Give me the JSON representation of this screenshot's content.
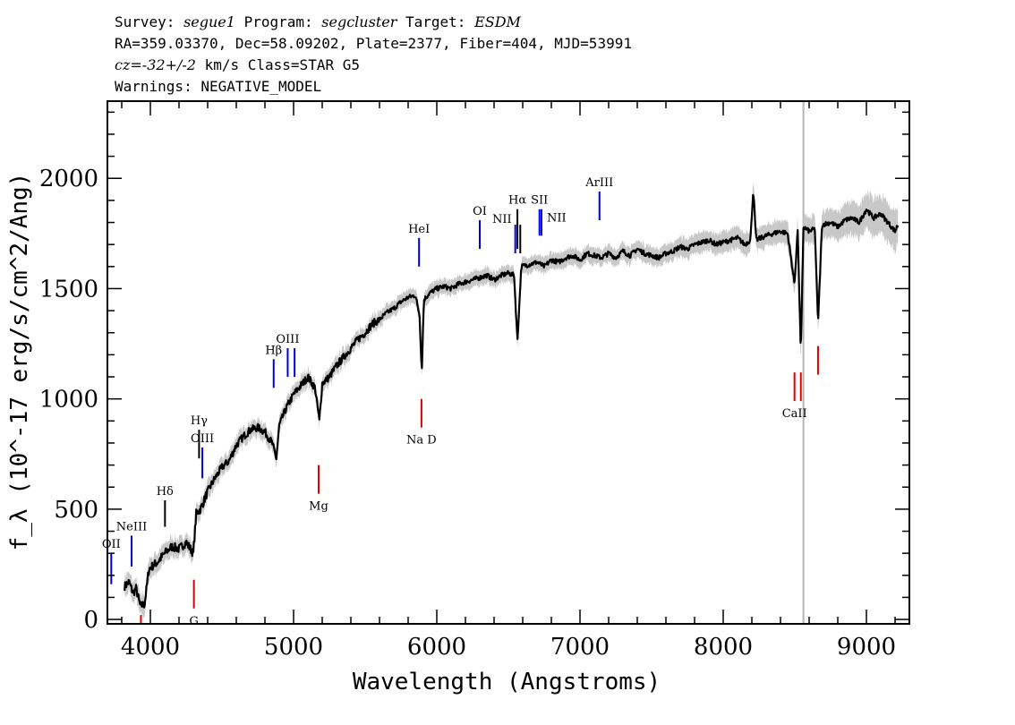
{
  "header": {
    "survey_label": "Survey:",
    "survey_value": "segue1",
    "program_label": "Program:",
    "program_value": "segcluster",
    "target_label": "Target:",
    "target_value": "ESDM",
    "line2": "RA=359.03370, Dec=58.09202, Plate=2377, Fiber=404, MJD=53991",
    "cz_label": "cz=",
    "cz_value": "-32+/-2",
    "line3_rest": "km/s Class=STAR G5",
    "line4": "Warnings: NEGATIVE_MODEL"
  },
  "chart_data": {
    "type": "line",
    "title": "Survey: segue1 Program: segcluster Target: ESDM",
    "xlabel": "Wavelength (Angstroms)",
    "ylabel": "f_λ (10^-17 erg/s/cm^2/Ang)",
    "xlim": [
      3700,
      9300
    ],
    "ylim": [
      -20,
      2350
    ],
    "x_ticks": [
      4000,
      5000,
      6000,
      7000,
      8000,
      9000
    ],
    "x_tick_labels": [
      "4000",
      "5000",
      "6000",
      "7000",
      "8000",
      "9000"
    ],
    "y_ticks": [
      0,
      500,
      1000,
      1500,
      2000
    ],
    "y_tick_labels": [
      "0",
      "500",
      "1000",
      "1500",
      "2000"
    ],
    "series": [
      {
        "name": "flux",
        "color": "#000000",
        "points": [
          [
            3820,
            150
          ],
          [
            3850,
            170
          ],
          [
            3880,
            120
          ],
          [
            3900,
            140
          ],
          [
            3930,
            60
          ],
          [
            3960,
            70
          ],
          [
            3990,
            230
          ],
          [
            4050,
            260
          ],
          [
            4100,
            300
          ],
          [
            4150,
            330
          ],
          [
            4200,
            320
          ],
          [
            4250,
            350
          ],
          [
            4300,
            300
          ],
          [
            4320,
            480
          ],
          [
            4350,
            500
          ],
          [
            4400,
            580
          ],
          [
            4450,
            640
          ],
          [
            4500,
            690
          ],
          [
            4550,
            720
          ],
          [
            4600,
            790
          ],
          [
            4650,
            830
          ],
          [
            4700,
            860
          ],
          [
            4750,
            870
          ],
          [
            4800,
            850
          ],
          [
            4850,
            800
          ],
          [
            4880,
            730
          ],
          [
            4900,
            880
          ],
          [
            4950,
            960
          ],
          [
            5000,
            1020
          ],
          [
            5050,
            1060
          ],
          [
            5100,
            1100
          ],
          [
            5150,
            1050
          ],
          [
            5180,
            900
          ],
          [
            5200,
            1070
          ],
          [
            5250,
            1100
          ],
          [
            5300,
            1150
          ],
          [
            5350,
            1190
          ],
          [
            5400,
            1230
          ],
          [
            5450,
            1270
          ],
          [
            5500,
            1300
          ],
          [
            5550,
            1340
          ],
          [
            5600,
            1360
          ],
          [
            5650,
            1390
          ],
          [
            5700,
            1410
          ],
          [
            5750,
            1440
          ],
          [
            5800,
            1460
          ],
          [
            5850,
            1470
          ],
          [
            5880,
            1380
          ],
          [
            5895,
            1120
          ],
          [
            5910,
            1450
          ],
          [
            5950,
            1480
          ],
          [
            6000,
            1500
          ],
          [
            6050,
            1510
          ],
          [
            6100,
            1500
          ],
          [
            6150,
            1520
          ],
          [
            6200,
            1530
          ],
          [
            6250,
            1540
          ],
          [
            6300,
            1550
          ],
          [
            6350,
            1560
          ],
          [
            6400,
            1540
          ],
          [
            6450,
            1560
          ],
          [
            6500,
            1570
          ],
          [
            6540,
            1560
          ],
          [
            6563,
            1260
          ],
          [
            6590,
            1600
          ],
          [
            6650,
            1610
          ],
          [
            6700,
            1620
          ],
          [
            6750,
            1600
          ],
          [
            6800,
            1630
          ],
          [
            6850,
            1620
          ],
          [
            6900,
            1640
          ],
          [
            6950,
            1650
          ],
          [
            7000,
            1630
          ],
          [
            7050,
            1660
          ],
          [
            7100,
            1650
          ],
          [
            7150,
            1640
          ],
          [
            7200,
            1660
          ],
          [
            7250,
            1640
          ],
          [
            7300,
            1670
          ],
          [
            7350,
            1650
          ],
          [
            7400,
            1680
          ],
          [
            7450,
            1660
          ],
          [
            7500,
            1650
          ],
          [
            7550,
            1640
          ],
          [
            7600,
            1660
          ],
          [
            7650,
            1670
          ],
          [
            7700,
            1690
          ],
          [
            7750,
            1680
          ],
          [
            7800,
            1700
          ],
          [
            7850,
            1710
          ],
          [
            7900,
            1720
          ],
          [
            7950,
            1700
          ],
          [
            8000,
            1710
          ],
          [
            8050,
            1720
          ],
          [
            8100,
            1730
          ],
          [
            8150,
            1700
          ],
          [
            8190,
            1720
          ],
          [
            8210,
            1950
          ],
          [
            8230,
            1720
          ],
          [
            8300,
            1740
          ],
          [
            8350,
            1750
          ],
          [
            8400,
            1760
          ],
          [
            8450,
            1750
          ],
          [
            8498,
            1520
          ],
          [
            8520,
            1770
          ],
          [
            8542,
            1200
          ],
          [
            8560,
            1780
          ],
          [
            8600,
            1760
          ],
          [
            8640,
            1770
          ],
          [
            8662,
            1340
          ],
          [
            8690,
            1790
          ],
          [
            8750,
            1800
          ],
          [
            8800,
            1780
          ],
          [
            8850,
            1810
          ],
          [
            8900,
            1820
          ],
          [
            8950,
            1800
          ],
          [
            9000,
            1860
          ],
          [
            9050,
            1820
          ],
          [
            9100,
            1840
          ],
          [
            9150,
            1800
          ],
          [
            9200,
            1760
          ],
          [
            9220,
            1790
          ]
        ]
      },
      {
        "name": "error",
        "color": "#c8c8c8",
        "band_halfwidth": [
          [
            3800,
            45
          ],
          [
            4500,
            40
          ],
          [
            5500,
            35
          ],
          [
            6500,
            35
          ],
          [
            7500,
            40
          ],
          [
            8500,
            55
          ],
          [
            9220,
            90
          ]
        ]
      }
    ],
    "vline": {
      "x": 8560,
      "color": "#b4b4b4"
    },
    "annotations": [
      {
        "label": "OII",
        "x": 3727,
        "y": 270,
        "y_top": 300,
        "y_bottom": 160,
        "color": "#0000dd",
        "label_pos": "above"
      },
      {
        "label": "NeIII",
        "x": 3869,
        "y": 300,
        "y_top": 380,
        "y_bottom": 240,
        "color": "#0000dd",
        "label_pos": "above"
      },
      {
        "label": "Hδ",
        "x": 4102,
        "y": 480,
        "y_top": 540,
        "y_bottom": 420,
        "color": "#000000",
        "label_pos": "above"
      },
      {
        "label": "Hγ",
        "x": 4340,
        "y": 770,
        "y_top": 860,
        "y_bottom": 730,
        "color": "#000000",
        "label_pos": "above"
      },
      {
        "label": "OIII",
        "x": 4363,
        "y": 710,
        "y_top": 780,
        "y_bottom": 640,
        "color": "#0000dd",
        "label_pos": "above"
      },
      {
        "label": "Hβ",
        "x": 4861,
        "y": 1150,
        "y_top": 1180,
        "y_bottom": 1050,
        "color": "#0000dd",
        "label_pos": "above"
      },
      {
        "label": "OIII",
        "x": 4959,
        "y": 1260,
        "y_top": 1230,
        "y_bottom": 1100,
        "color": "#0000dd",
        "label_pos": "above"
      },
      {
        "label": "",
        "x": 5007,
        "y": 1260,
        "y_top": 1230,
        "y_bottom": 1100,
        "color": "#0000dd",
        "label_pos": "none"
      },
      {
        "label": "HeI",
        "x": 5876,
        "y": 1740,
        "y_top": 1730,
        "y_bottom": 1600,
        "color": "#0000dd",
        "label_pos": "above"
      },
      {
        "label": "OI",
        "x": 6300,
        "y": 1870,
        "y_top": 1810,
        "y_bottom": 1680,
        "color": "#0000dd",
        "label_pos": "above"
      },
      {
        "label": "NII",
        "x": 6548,
        "y": 1830,
        "y_top": 1790,
        "y_bottom": 1660,
        "color": "#0000dd",
        "label_pos": "left"
      },
      {
        "label": "Hα",
        "x": 6563,
        "y": 1870,
        "y_top": 1860,
        "y_bottom": 1680,
        "color": "#000000",
        "label_pos": "above"
      },
      {
        "label": "NII",
        "x": 6583,
        "y": 1830,
        "y_top": 1790,
        "y_bottom": 1660,
        "color": "#000000",
        "label_pos": "none"
      },
      {
        "label": "SII",
        "x": 6717,
        "y": 1880,
        "y_top": 1860,
        "y_bottom": 1740,
        "color": "#0000dd",
        "label_pos": "above"
      },
      {
        "label": "NII",
        "x": 6731,
        "y": 1830,
        "y_top": 1860,
        "y_bottom": 1740,
        "color": "#0000dd",
        "label_pos": "right"
      },
      {
        "label": "ArIII",
        "x": 7136,
        "y": 1980,
        "y_top": 1940,
        "y_bottom": 1810,
        "color": "#0000dd",
        "label_pos": "above"
      },
      {
        "label": "G",
        "x": 4304,
        "y": -35,
        "y_top": 180,
        "y_bottom": 50,
        "color": "#dd0000",
        "label_pos": "below"
      },
      {
        "label": "Mg",
        "x": 5175,
        "y": 520,
        "y_top": 700,
        "y_bottom": 570,
        "color": "#dd0000",
        "label_pos": "below"
      },
      {
        "label": "Na D",
        "x": 5893,
        "y": 820,
        "y_top": 1000,
        "y_bottom": 870,
        "color": "#dd0000",
        "label_pos": "below"
      },
      {
        "label": "CaII",
        "x": 8498,
        "y": 935,
        "y_top": 1120,
        "y_bottom": 990,
        "color": "#dd0000",
        "label_pos": "below"
      },
      {
        "label": "",
        "x": 8542,
        "y": 935,
        "y_top": 1120,
        "y_bottom": 990,
        "color": "#dd0000",
        "label_pos": "none"
      },
      {
        "label": "",
        "x": 8662,
        "y": 935,
        "y_top": 1240,
        "y_bottom": 1110,
        "color": "#dd0000",
        "label_pos": "none"
      },
      {
        "label": "",
        "x": 3934,
        "y": 0,
        "y_top": 20,
        "y_bottom": -20,
        "color": "#dd0000",
        "label_pos": "none"
      }
    ]
  }
}
